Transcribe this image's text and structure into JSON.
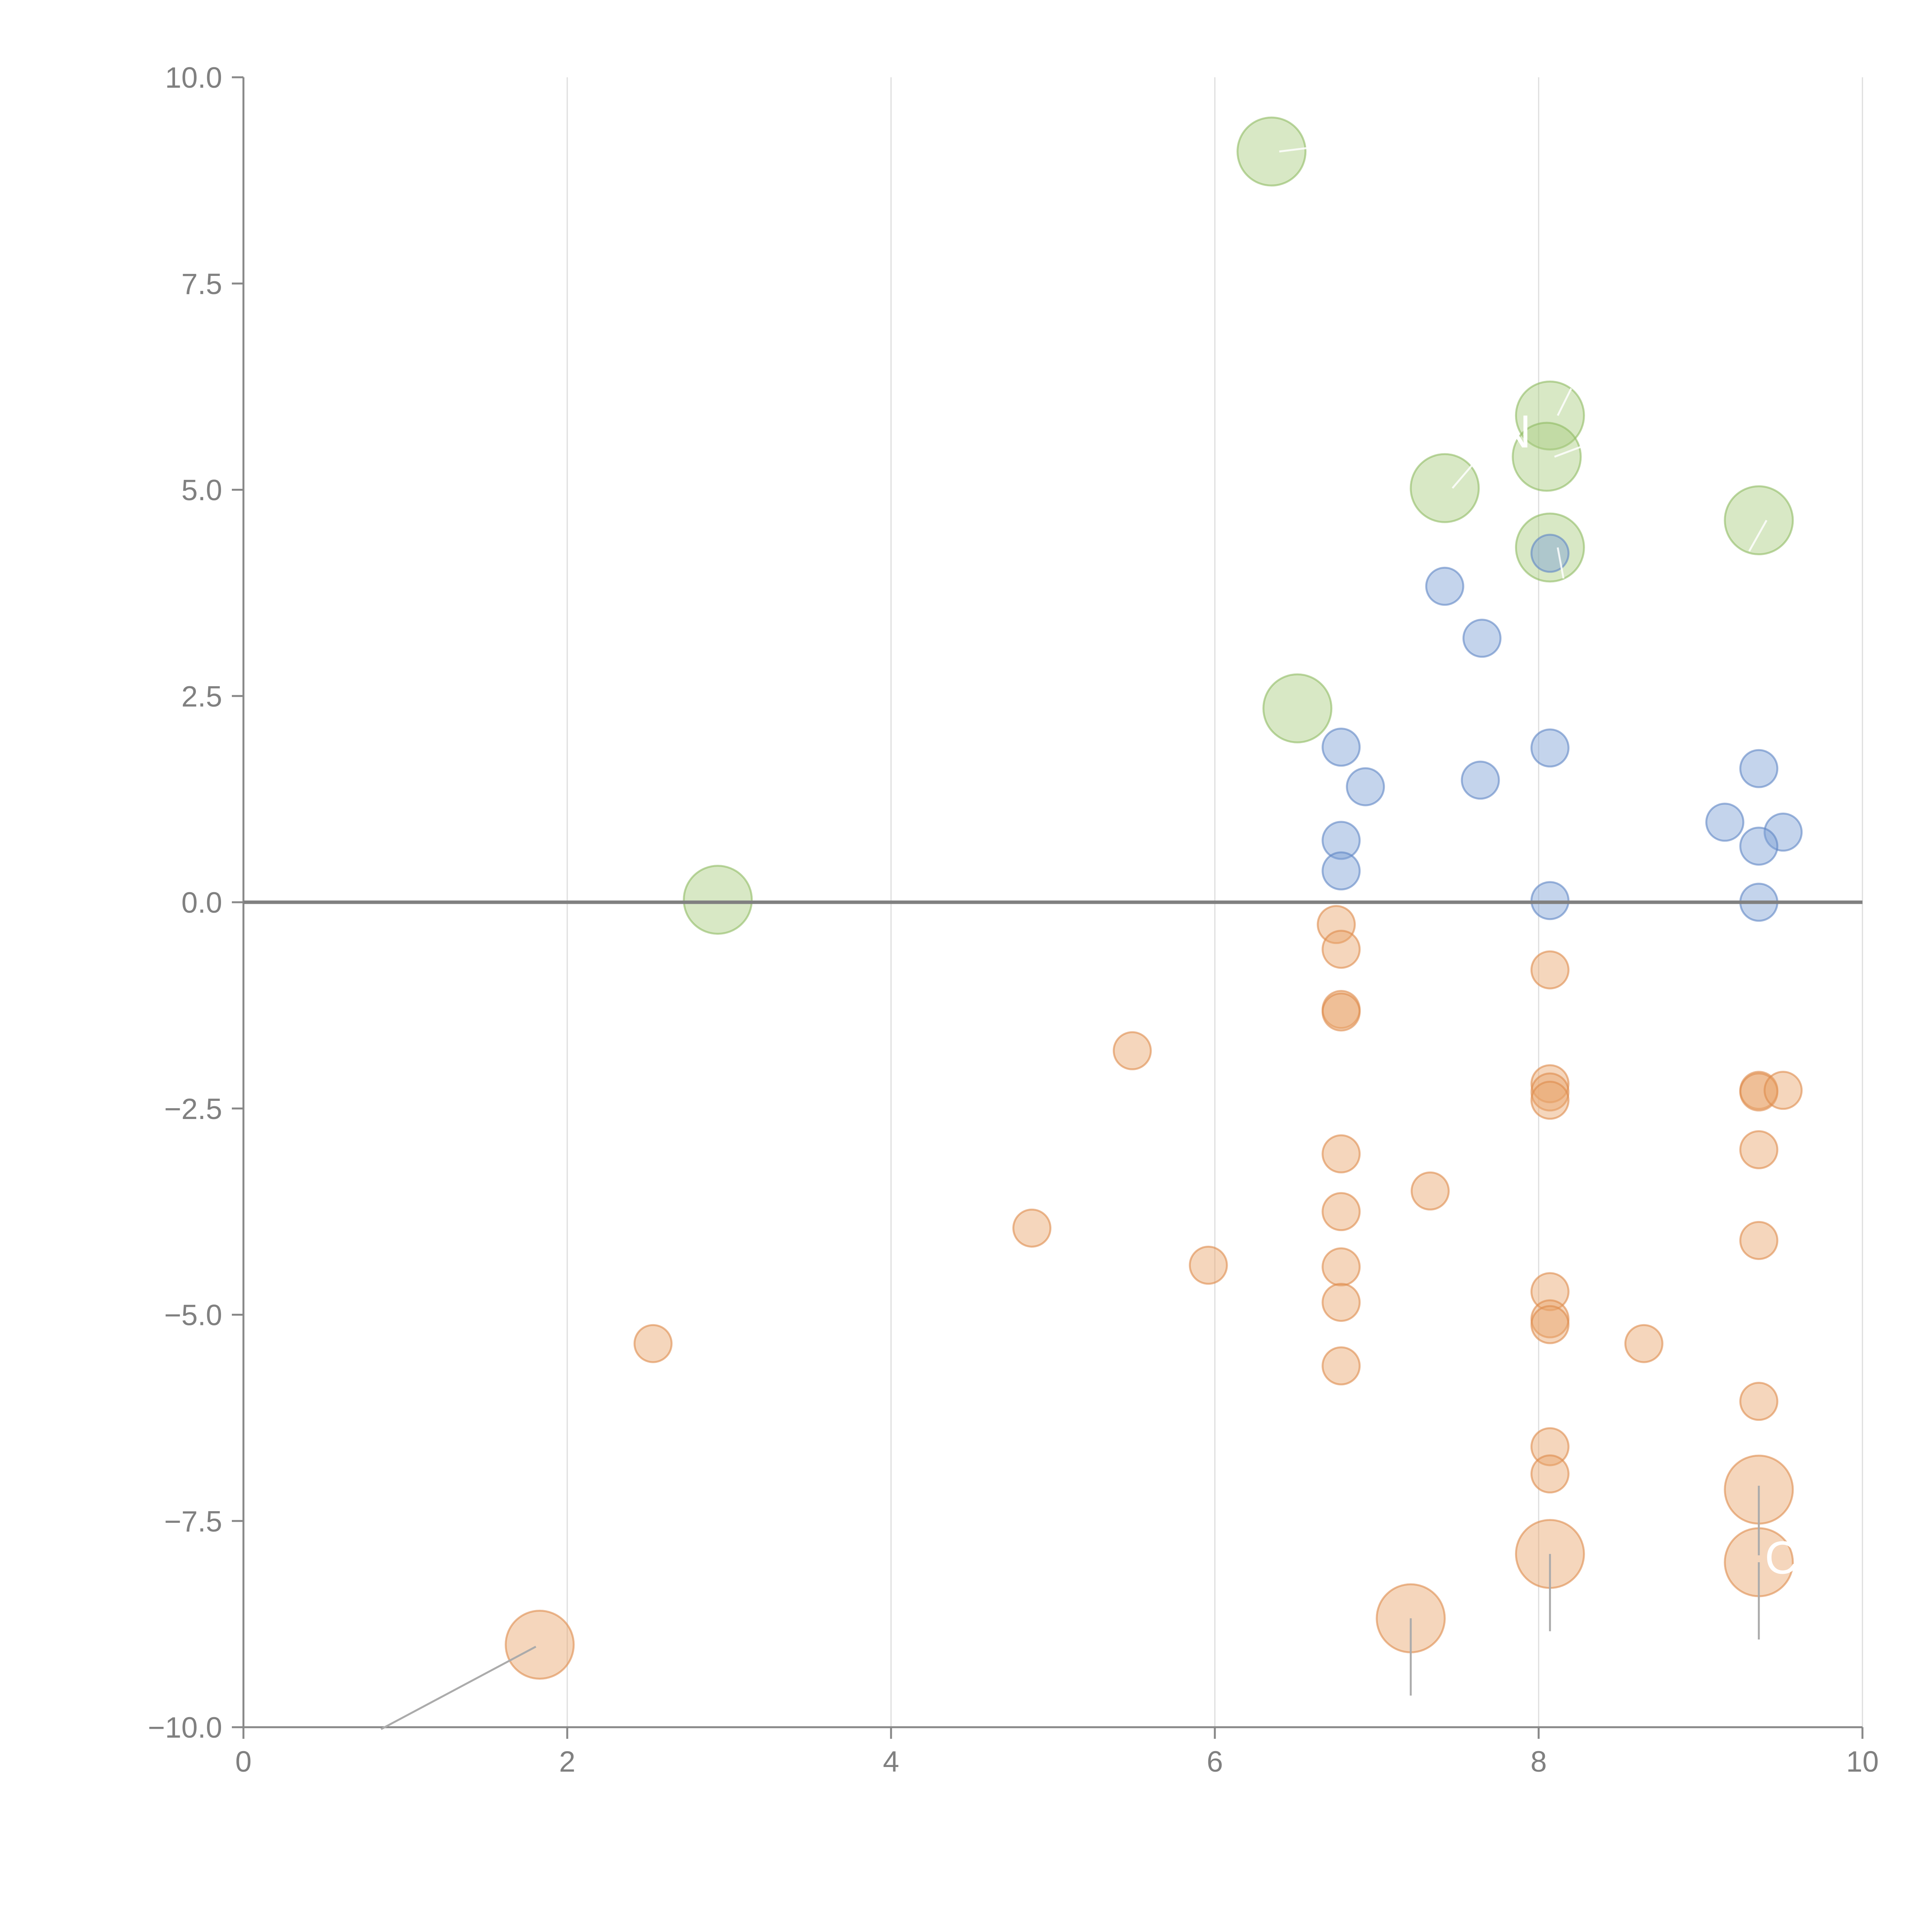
{
  "chart_data": {
    "type": "scatter",
    "title": "",
    "xlabel": "",
    "ylabel": "",
    "xlim": [
      0,
      10
    ],
    "ylim": [
      -10,
      10
    ],
    "x_ticks": [
      0,
      2,
      4,
      6,
      8,
      10
    ],
    "x_tick_labels": [
      "0",
      "2",
      "4",
      "6",
      "8",
      "10"
    ],
    "y_ticks": [
      -10,
      -7.5,
      -5,
      -2.5,
      0,
      2.5,
      5,
      7.5,
      10
    ],
    "y_tick_labels": [
      "−10.0",
      "−7.5",
      "−5.0",
      "−2.5",
      "0.0",
      "2.5",
      "5.0",
      "7.5",
      "10.0"
    ],
    "vertical_grid": true,
    "horizontal_grid": false,
    "zero_line": true,
    "legend": "none",
    "series": [
      {
        "name": "green",
        "color": "#a8cc7e",
        "stroke": "#8fba62",
        "size": "large",
        "points": [
          {
            "x": 6.35,
            "y": 9.1
          },
          {
            "x": 8.07,
            "y": 5.9
          },
          {
            "x": 8.05,
            "y": 5.4
          },
          {
            "x": 7.42,
            "y": 5.02
          },
          {
            "x": 9.36,
            "y": 4.63
          },
          {
            "x": 8.07,
            "y": 4.3
          },
          {
            "x": 6.51,
            "y": 2.35
          },
          {
            "x": 2.93,
            "y": 0.03
          }
        ]
      },
      {
        "name": "blue",
        "color": "#7d9fd4",
        "stroke": "#5f86c4",
        "size": "medium",
        "points": [
          {
            "x": 8.07,
            "y": 4.23
          },
          {
            "x": 7.42,
            "y": 3.83
          },
          {
            "x": 7.65,
            "y": 3.2
          },
          {
            "x": 6.78,
            "y": 1.88
          },
          {
            "x": 8.07,
            "y": 1.87
          },
          {
            "x": 9.36,
            "y": 1.62
          },
          {
            "x": 7.64,
            "y": 1.48
          },
          {
            "x": 6.93,
            "y": 1.4
          },
          {
            "x": 9.15,
            "y": 0.97
          },
          {
            "x": 9.51,
            "y": 0.85
          },
          {
            "x": 6.78,
            "y": 0.75
          },
          {
            "x": 9.36,
            "y": 0.68
          },
          {
            "x": 6.78,
            "y": 0.38
          },
          {
            "x": 8.07,
            "y": 0.02
          },
          {
            "x": 9.36,
            "y": 0.0
          }
        ]
      },
      {
        "name": "orange",
        "color": "#e9a36b",
        "stroke": "#dd8a4b",
        "size": "medium",
        "points": [
          {
            "x": 6.75,
            "y": -0.27
          },
          {
            "x": 6.78,
            "y": -0.57
          },
          {
            "x": 8.07,
            "y": -0.82
          },
          {
            "x": 6.78,
            "y": -1.3
          },
          {
            "x": 6.78,
            "y": -1.33
          },
          {
            "x": 5.49,
            "y": -1.8
          },
          {
            "x": 8.07,
            "y": -2.2
          },
          {
            "x": 8.07,
            "y": -2.3
          },
          {
            "x": 8.07,
            "y": -2.4
          },
          {
            "x": 9.36,
            "y": -2.28
          },
          {
            "x": 9.36,
            "y": -2.3
          },
          {
            "x": 9.51,
            "y": -2.28
          },
          {
            "x": 9.36,
            "y": -3.0
          },
          {
            "x": 6.78,
            "y": -3.05
          },
          {
            "x": 7.33,
            "y": -3.5
          },
          {
            "x": 6.78,
            "y": -3.75
          },
          {
            "x": 4.87,
            "y": -3.95
          },
          {
            "x": 9.36,
            "y": -4.1
          },
          {
            "x": 5.96,
            "y": -4.4
          },
          {
            "x": 6.78,
            "y": -4.42
          },
          {
            "x": 8.07,
            "y": -4.72
          },
          {
            "x": 6.78,
            "y": -4.85
          },
          {
            "x": 8.07,
            "y": -5.05
          },
          {
            "x": 8.07,
            "y": -5.12
          },
          {
            "x": 2.53,
            "y": -5.35
          },
          {
            "x": 8.65,
            "y": -5.35
          },
          {
            "x": 6.78,
            "y": -5.62
          },
          {
            "x": 9.36,
            "y": -6.05
          },
          {
            "x": 8.07,
            "y": -6.6
          },
          {
            "x": 8.07,
            "y": -6.93
          }
        ]
      },
      {
        "name": "orange-large",
        "color": "#e9a36b",
        "stroke": "#dd8a4b",
        "size": "large",
        "points": [
          {
            "x": 9.36,
            "y": -7.12
          },
          {
            "x": 8.07,
            "y": -7.9
          },
          {
            "x": 9.36,
            "y": -8.0
          },
          {
            "x": 7.21,
            "y": -8.68
          },
          {
            "x": 1.83,
            "y": -9.0
          }
        ]
      }
    ],
    "annotations": [
      {
        "text": "N",
        "x": 7.85,
        "y": 5.7
      },
      {
        "text": "C",
        "x": 9.5,
        "y": -7.95
      }
    ]
  }
}
